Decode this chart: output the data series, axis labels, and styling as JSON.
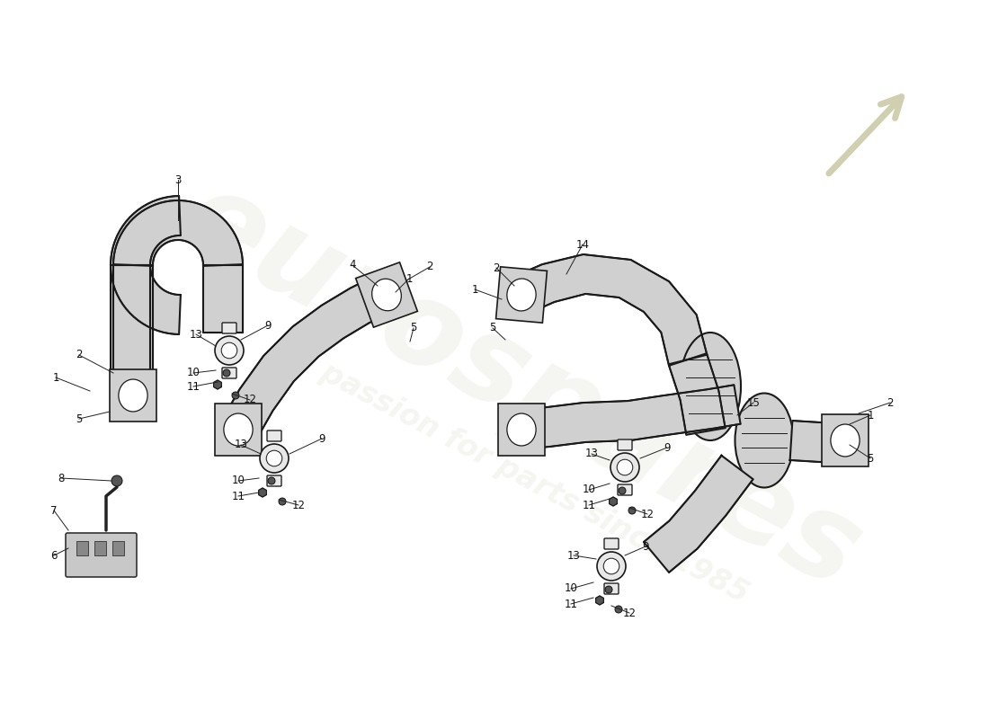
{
  "bg": "#ffffff",
  "pipe_fill": "#d0d0d0",
  "pipe_edge": "#1a1a1a",
  "pipe_lw": 1.5,
  "label_fs": 8.5,
  "label_color": "#111111",
  "leader_lw": 0.7,
  "leader_color": "#222222",
  "watermark_text_color": "#c8c8b0",
  "watermark_alpha": 0.18,
  "clamp_fill": "#e8e8e8",
  "clamp_edge": "#111111"
}
